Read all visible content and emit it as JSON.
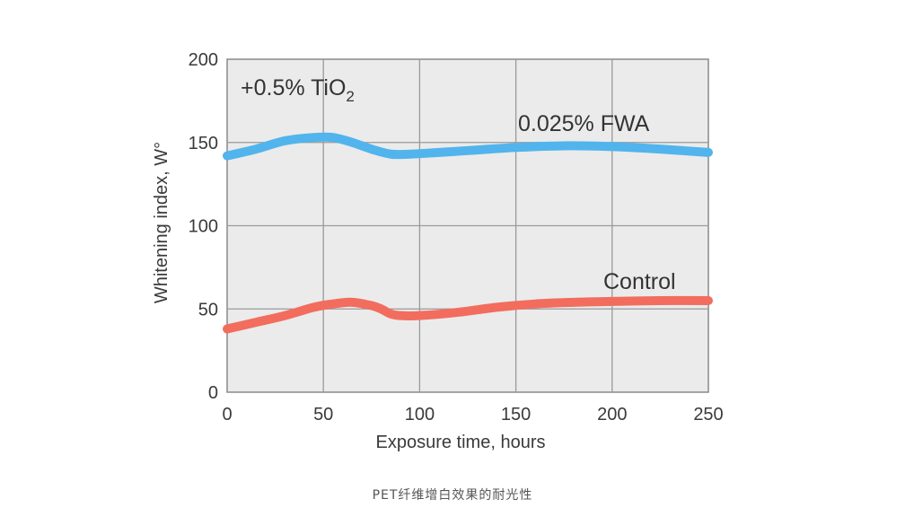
{
  "chart_data": {
    "type": "line",
    "title": "",
    "xlabel": "Exposure time, hours",
    "ylabel": "Whitening index, W°",
    "xlim": [
      0,
      250
    ],
    "ylim": [
      0,
      200
    ],
    "x_ticks": [
      0,
      50,
      100,
      150,
      200,
      250
    ],
    "y_ticks": [
      0,
      50,
      100,
      150,
      200
    ],
    "grid": true,
    "annotation_main": "+0.5% TiO",
    "annotation_sub": "2",
    "series": [
      {
        "name": "0.025% FWA",
        "color": "#52b4ec",
        "x": [
          0,
          15,
          30,
          45,
          55,
          65,
          75,
          85,
          95,
          110,
          130,
          150,
          175,
          200,
          225,
          250
        ],
        "y": [
          142,
          146,
          151,
          153,
          153,
          150,
          146,
          143,
          143,
          144,
          145.5,
          147,
          148,
          147.5,
          146,
          144
        ]
      },
      {
        "name": "Control",
        "color": "#f26d5e",
        "x": [
          0,
          15,
          30,
          45,
          55,
          65,
          75,
          80,
          85,
          90,
          100,
          120,
          140,
          160,
          180,
          200,
          225,
          250
        ],
        "y": [
          38,
          42,
          46,
          51,
          53,
          54,
          52,
          50,
          47,
          46,
          46,
          48,
          51,
          53,
          54,
          54.5,
          55,
          55
        ]
      }
    ]
  },
  "caption": "PET纤维增白效果的耐光性"
}
